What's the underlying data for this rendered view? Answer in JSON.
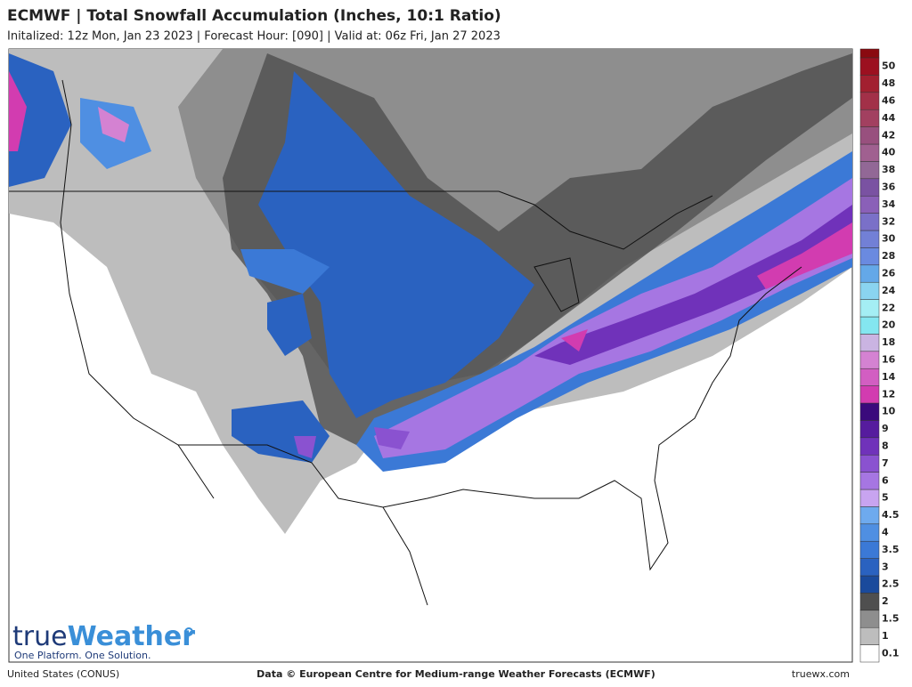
{
  "header": {
    "title": "ECMWF | Total Snowfall Accumulation (Inches, 10:1 Ratio)",
    "subtitle": "Initalized: 12z Mon, Jan 23 2023 | Forecast Hour: [090] | Valid at: 06z Fri, Jan 27 2023"
  },
  "legend": {
    "levels": [
      0.1,
      1,
      1.5,
      2,
      2.5,
      3,
      3.5,
      4,
      4.5,
      5,
      6,
      7,
      8,
      9,
      10,
      12,
      14,
      16,
      18,
      20,
      22,
      24,
      26,
      28,
      30,
      32,
      34,
      36,
      38,
      40,
      42,
      44,
      46,
      48,
      50
    ],
    "colors": [
      "#ffffff",
      "#bdbdbd",
      "#8e8e8e",
      "#4f4f4f",
      "#1a4a9c",
      "#2a62c0",
      "#3b79d6",
      "#4f8fe2",
      "#6eaaee",
      "#c8a4f0",
      "#a676e2",
      "#8a52d0",
      "#7032ba",
      "#561c9e",
      "#3a0a7c",
      "#d23cb0",
      "#d25ec2",
      "#d482d2",
      "#cab4e2",
      "#84e6f0",
      "#a4eef4",
      "#8ad4f0",
      "#64a8e8",
      "#6a8ae0",
      "#7280d6",
      "#7a70c8",
      "#8a60b8",
      "#7a52a2",
      "#926896",
      "#a06090",
      "#98507e",
      "#a24060",
      "#a23048",
      "#a22030",
      "#9c1020"
    ]
  },
  "logo": {
    "prefix": "true",
    "suffix": "Weather",
    "tagline": "One Platform. One Solution."
  },
  "footer": {
    "left": "United States (CONUS)",
    "center": "Data © European Centre for Medium-range Weather Forecasts (ECMWF)",
    "right": "truewx.com"
  }
}
